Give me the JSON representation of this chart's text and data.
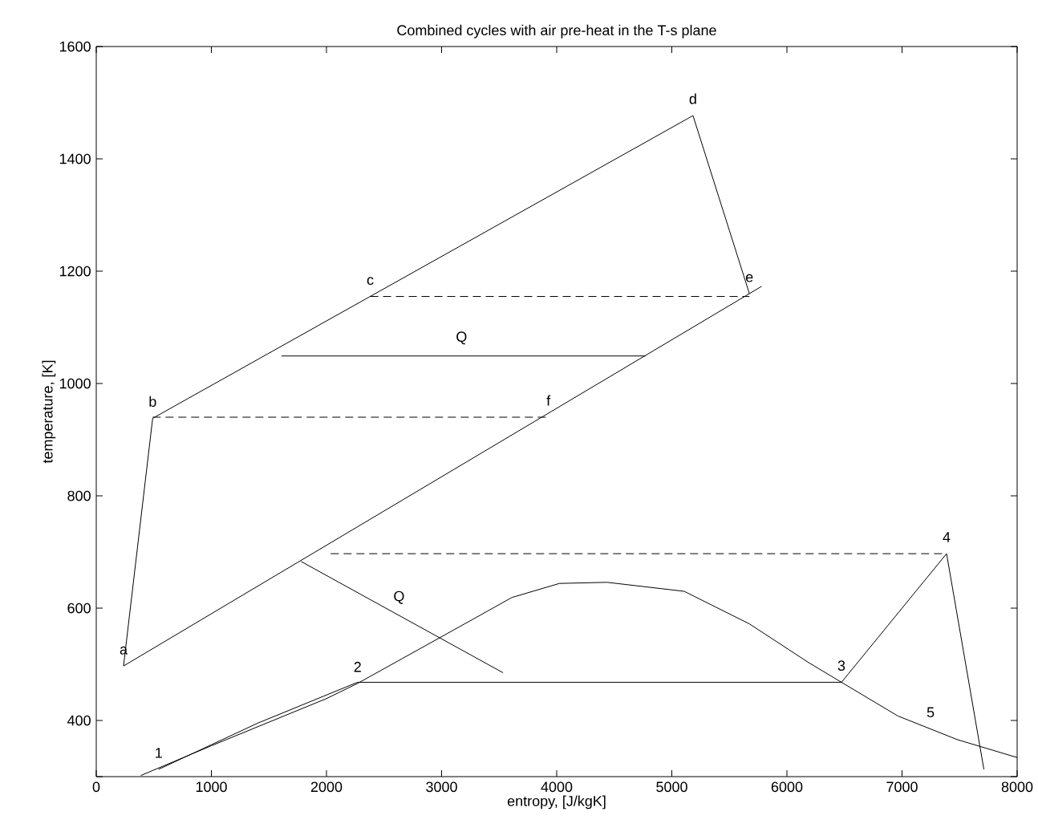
{
  "chart_data": {
    "type": "line",
    "title": "Combined cycles with air pre-heat in the T-s plane",
    "xlabel": "entropy, [J/kgK]",
    "ylabel": "temperature, [K]",
    "xlim": [
      0,
      8000
    ],
    "ylim": [
      300,
      1600
    ],
    "xticks": [
      0,
      1000,
      2000,
      3000,
      4000,
      5000,
      6000,
      7000,
      8000
    ],
    "yticks": [
      {
        "value": 300,
        "label": null
      },
      400,
      600,
      800,
      1000,
      1200,
      1400,
      1600
    ],
    "grid": false,
    "series": [
      {
        "color": "#000000",
        "line_style": "solid",
        "x": [
          5674,
          237,
          490,
          5184,
          5674,
          5780
        ],
        "values": [
          1160,
          497,
          938,
          1477,
          1160,
          1173
        ]
      },
      {
        "color": "#000000",
        "line_style": "dashed",
        "x": [
          2380,
          5674
        ],
        "values": [
          1155,
          1155
        ]
      },
      {
        "color": "#000000",
        "line_style": "dashed",
        "x": [
          490,
          3928
        ],
        "values": [
          940,
          940
        ]
      },
      {
        "color": "#000000",
        "line_style": "solid",
        "x": [
          4771,
          1610
        ],
        "values": [
          1049,
          1049
        ]
      },
      {
        "color": "#000000",
        "line_style": "solid",
        "x": [
          387,
          1000,
          2000,
          2270,
          2990,
          3611,
          4024,
          4436,
          5107,
          5674,
          6189,
          6474,
          6964,
          7479,
          8000
        ],
        "values": [
          302,
          355,
          439,
          466,
          548,
          619,
          644,
          646,
          630,
          572,
          503,
          468,
          408,
          366,
          334
        ]
      },
      {
        "color": "#000000",
        "line_style": "solid",
        "x": [
          542,
          1400,
          2270,
          6474,
          7387,
          7711
        ],
        "values": [
          313,
          395,
          468,
          468,
          697,
          313
        ]
      },
      {
        "color": "#000000",
        "line_style": "dashed",
        "x": [
          2037,
          7387
        ],
        "values": [
          697,
          697
        ]
      },
      {
        "color": "#000000",
        "line_style": "solid",
        "x": [
          1780,
          3534
        ],
        "values": [
          683,
          485
        ]
      }
    ],
    "annotations": [
      {
        "text": "a",
        "x": 237,
        "y": 497
      },
      {
        "text": "b",
        "x": 490,
        "y": 938
      },
      {
        "text": "c",
        "x": 2380,
        "y": 1155
      },
      {
        "text": "d",
        "x": 5184,
        "y": 1477
      },
      {
        "text": "e",
        "x": 5674,
        "y": 1160
      },
      {
        "text": "f",
        "x": 3928,
        "y": 940
      },
      {
        "text": "Q",
        "x": 3173,
        "y": 1049
      },
      {
        "text": "Q",
        "x": 2630,
        "y": 587
      },
      {
        "text": "1",
        "x": 542,
        "y": 313
      },
      {
        "text": "2",
        "x": 2270,
        "y": 466
      },
      {
        "text": "3",
        "x": 6474,
        "y": 468
      },
      {
        "text": "4",
        "x": 7387,
        "y": 697
      },
      {
        "text": "5",
        "x": 7248,
        "y": 385
      }
    ]
  }
}
